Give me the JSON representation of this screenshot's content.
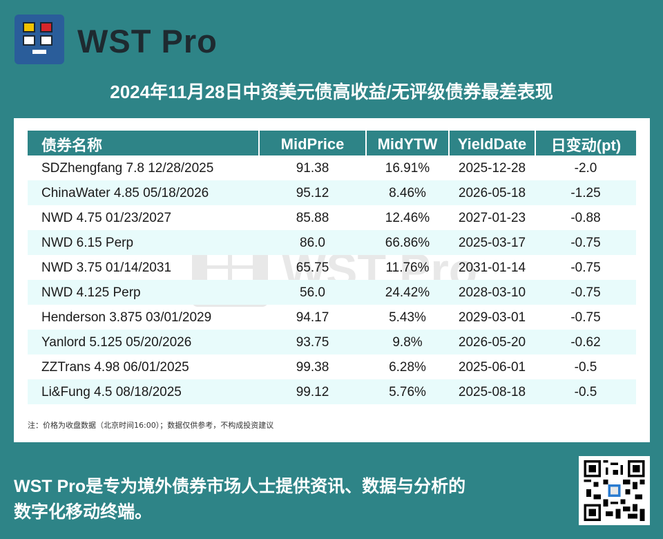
{
  "brand": {
    "name": "WST Pro",
    "icon": "wst-pro-logo-icon"
  },
  "title": "2024年11月28日中资美元债高收益/无评级债券最差表现",
  "table": {
    "headers": [
      "债券名称",
      "MidPrice",
      "MidYTW",
      "YieldDate",
      "日变动(pt)"
    ],
    "rows": [
      [
        "SDZhengfang 7.8 12/28/2025",
        "91.38",
        "16.91%",
        "2025-12-28",
        "-2.0"
      ],
      [
        "ChinaWater 4.85 05/18/2026",
        "95.12",
        "8.46%",
        "2026-05-18",
        "-1.25"
      ],
      [
        "NWD 4.75 01/23/2027",
        "85.88",
        "12.46%",
        "2027-01-23",
        "-0.88"
      ],
      [
        "NWD 6.15 Perp",
        "86.0",
        "66.86%",
        "2025-03-17",
        "-0.75"
      ],
      [
        "NWD 3.75 01/14/2031",
        "65.75",
        "11.76%",
        "2031-01-14",
        "-0.75"
      ],
      [
        "NWD 4.125 Perp",
        "56.0",
        "24.42%",
        "2028-03-10",
        "-0.75"
      ],
      [
        "Henderson 3.875 03/01/2029",
        "94.17",
        "5.43%",
        "2029-03-01",
        "-0.75"
      ],
      [
        "Yanlord 5.125 05/20/2026",
        "93.75",
        "9.8%",
        "2026-05-20",
        "-0.62"
      ],
      [
        "ZZTrans 4.98 06/01/2025",
        "99.38",
        "6.28%",
        "2025-06-01",
        "-0.5"
      ],
      [
        "Li&Fung 4.5 08/18/2025",
        "99.12",
        "5.76%",
        "2025-08-18",
        "-0.5"
      ]
    ]
  },
  "note": "注：价格为收盘数据（北京时间16:00）；数据仅供参考，不构成投资建议",
  "watermark": "WST Pro",
  "footer": {
    "line1": "WST Pro是专为境外债券市场人士提供资讯、数据与分析的",
    "line2": "数字化移动终端。"
  },
  "qr": {
    "icon": "qr-code-icon"
  },
  "colors": {
    "background": "#2e8487",
    "header": "#2e8487",
    "row_alt": "#e8fbfb",
    "logo_bg": "#2a5d9a"
  }
}
